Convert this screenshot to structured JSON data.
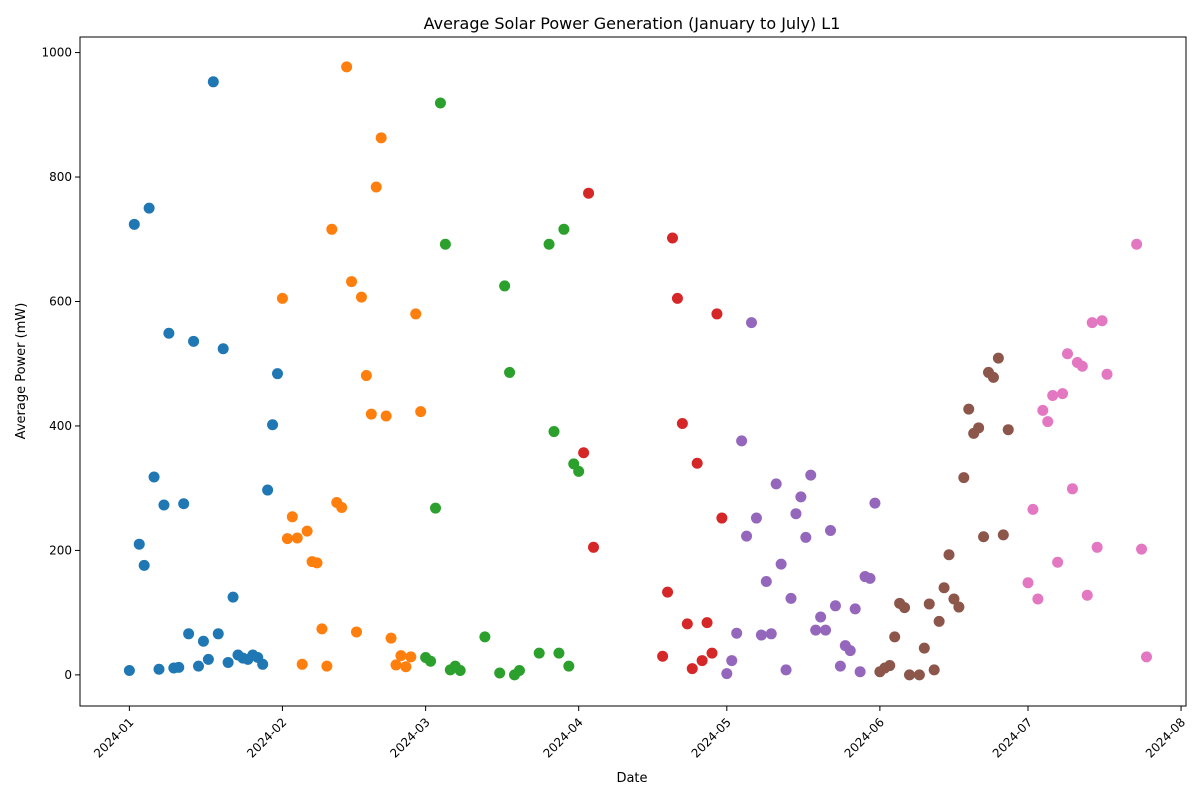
{
  "chart_data": {
    "type": "scatter",
    "title": "Average Solar Power Generation (January to July) L1",
    "xlabel": "Date",
    "ylabel": "Average Power (mW)",
    "x_axis_type": "date",
    "xlim": [
      "2023-12-22",
      "2024-08-02"
    ],
    "ylim": [
      -50,
      1025
    ],
    "x_ticks": [
      {
        "date": "2024-01-01",
        "label": "2024-01"
      },
      {
        "date": "2024-02-01",
        "label": "2024-02"
      },
      {
        "date": "2024-03-01",
        "label": "2024-03"
      },
      {
        "date": "2024-04-01",
        "label": "2024-04"
      },
      {
        "date": "2024-05-01",
        "label": "2024-05"
      },
      {
        "date": "2024-06-01",
        "label": "2024-06"
      },
      {
        "date": "2024-07-01",
        "label": "2024-07"
      },
      {
        "date": "2024-08-01",
        "label": "2024-08"
      }
    ],
    "y_ticks": [
      0,
      200,
      400,
      600,
      800,
      1000
    ],
    "grid": false,
    "legend": "none",
    "series": [
      {
        "color": "#1f77b4",
        "points": [
          [
            "2024-01-01",
            7
          ],
          [
            "2024-01-02",
            724
          ],
          [
            "2024-01-03",
            210
          ],
          [
            "2024-01-04",
            176
          ],
          [
            "2024-01-05",
            750
          ],
          [
            "2024-01-06",
            318
          ],
          [
            "2024-01-07",
            9
          ],
          [
            "2024-01-08",
            273
          ],
          [
            "2024-01-09",
            549
          ],
          [
            "2024-01-10",
            11
          ],
          [
            "2024-01-11",
            12
          ],
          [
            "2024-01-12",
            275
          ],
          [
            "2024-01-13",
            66
          ],
          [
            "2024-01-14",
            536
          ],
          [
            "2024-01-15",
            14
          ],
          [
            "2024-01-16",
            54
          ],
          [
            "2024-01-17",
            25
          ],
          [
            "2024-01-18",
            953
          ],
          [
            "2024-01-19",
            66
          ],
          [
            "2024-01-20",
            524
          ],
          [
            "2024-01-21",
            20
          ],
          [
            "2024-01-22",
            125
          ],
          [
            "2024-01-23",
            32
          ],
          [
            "2024-01-24",
            27
          ],
          [
            "2024-01-25",
            25
          ],
          [
            "2024-01-26",
            32
          ],
          [
            "2024-01-27",
            28
          ],
          [
            "2024-01-28",
            17
          ],
          [
            "2024-01-29",
            297
          ],
          [
            "2024-01-30",
            402
          ],
          [
            "2024-01-31",
            484
          ]
        ]
      },
      {
        "color": "#ff7f0e",
        "points": [
          [
            "2024-02-01",
            605
          ],
          [
            "2024-02-02",
            219
          ],
          [
            "2024-02-03",
            254
          ],
          [
            "2024-02-04",
            220
          ],
          [
            "2024-02-05",
            17
          ],
          [
            "2024-02-06",
            231
          ],
          [
            "2024-02-07",
            182
          ],
          [
            "2024-02-08",
            180
          ],
          [
            "2024-02-09",
            74
          ],
          [
            "2024-02-10",
            14
          ],
          [
            "2024-02-11",
            716
          ],
          [
            "2024-02-12",
            277
          ],
          [
            "2024-02-13",
            269
          ],
          [
            "2024-02-14",
            977
          ],
          [
            "2024-02-15",
            632
          ],
          [
            "2024-02-16",
            69
          ],
          [
            "2024-02-17",
            607
          ],
          [
            "2024-02-18",
            481
          ],
          [
            "2024-02-19",
            419
          ],
          [
            "2024-02-20",
            784
          ],
          [
            "2024-02-21",
            863
          ],
          [
            "2024-02-22",
            416
          ],
          [
            "2024-02-23",
            59
          ],
          [
            "2024-02-24",
            16
          ],
          [
            "2024-02-25",
            31
          ],
          [
            "2024-02-26",
            13
          ],
          [
            "2024-02-27",
            29
          ],
          [
            "2024-02-28",
            580
          ],
          [
            "2024-02-29",
            423
          ]
        ]
      },
      {
        "color": "#2ca02c",
        "points": [
          [
            "2024-03-01",
            28
          ],
          [
            "2024-03-02",
            22
          ],
          [
            "2024-03-03",
            268
          ],
          [
            "2024-03-04",
            919
          ],
          [
            "2024-03-05",
            692
          ],
          [
            "2024-03-06",
            8
          ],
          [
            "2024-03-07",
            14
          ],
          [
            "2024-03-08",
            7
          ],
          [
            "2024-03-13",
            61
          ],
          [
            "2024-03-16",
            3
          ],
          [
            "2024-03-17",
            625
          ],
          [
            "2024-03-18",
            486
          ],
          [
            "2024-03-19",
            0
          ],
          [
            "2024-03-20",
            7
          ],
          [
            "2024-03-24",
            35
          ],
          [
            "2024-03-26",
            692
          ],
          [
            "2024-03-27",
            391
          ],
          [
            "2024-03-28",
            35
          ],
          [
            "2024-03-29",
            716
          ],
          [
            "2024-03-30",
            14
          ],
          [
            "2024-03-31",
            339
          ],
          [
            "2024-04-01",
            327
          ]
        ]
      },
      {
        "color": "#d62728",
        "points": [
          [
            "2024-04-02",
            357
          ],
          [
            "2024-04-03",
            774
          ],
          [
            "2024-04-04",
            205
          ],
          [
            "2024-04-18",
            30
          ],
          [
            "2024-04-19",
            133
          ],
          [
            "2024-04-20",
            702
          ],
          [
            "2024-04-21",
            605
          ],
          [
            "2024-04-22",
            404
          ],
          [
            "2024-04-23",
            82
          ],
          [
            "2024-04-24",
            10
          ],
          [
            "2024-04-25",
            340
          ],
          [
            "2024-04-26",
            23
          ],
          [
            "2024-04-27",
            84
          ],
          [
            "2024-04-28",
            35
          ],
          [
            "2024-04-29",
            580
          ],
          [
            "2024-04-30",
            252
          ]
        ]
      },
      {
        "color": "#9467bd",
        "points": [
          [
            "2024-05-01",
            2
          ],
          [
            "2024-05-02",
            23
          ],
          [
            "2024-05-03",
            67
          ],
          [
            "2024-05-04",
            376
          ],
          [
            "2024-05-05",
            223
          ],
          [
            "2024-05-06",
            566
          ],
          [
            "2024-05-07",
            252
          ],
          [
            "2024-05-08",
            64
          ],
          [
            "2024-05-09",
            150
          ],
          [
            "2024-05-10",
            66
          ],
          [
            "2024-05-11",
            307
          ],
          [
            "2024-05-12",
            178
          ],
          [
            "2024-05-13",
            8
          ],
          [
            "2024-05-14",
            123
          ],
          [
            "2024-05-15",
            259
          ],
          [
            "2024-05-16",
            286
          ],
          [
            "2024-05-17",
            221
          ],
          [
            "2024-05-18",
            321
          ],
          [
            "2024-05-19",
            72
          ],
          [
            "2024-05-20",
            93
          ],
          [
            "2024-05-21",
            72
          ],
          [
            "2024-05-22",
            232
          ],
          [
            "2024-05-23",
            111
          ],
          [
            "2024-05-24",
            14
          ],
          [
            "2024-05-25",
            47
          ],
          [
            "2024-05-26",
            39
          ],
          [
            "2024-05-27",
            106
          ],
          [
            "2024-05-28",
            5
          ],
          [
            "2024-05-29",
            158
          ],
          [
            "2024-05-30",
            155
          ],
          [
            "2024-05-31",
            276
          ]
        ]
      },
      {
        "color": "#8c564b",
        "points": [
          [
            "2024-06-01",
            5
          ],
          [
            "2024-06-02",
            11
          ],
          [
            "2024-06-03",
            15
          ],
          [
            "2024-06-04",
            61
          ],
          [
            "2024-06-05",
            115
          ],
          [
            "2024-06-06",
            108
          ],
          [
            "2024-06-07",
            0
          ],
          [
            "2024-06-09",
            0
          ],
          [
            "2024-06-10",
            43
          ],
          [
            "2024-06-11",
            114
          ],
          [
            "2024-06-12",
            8
          ],
          [
            "2024-06-13",
            86
          ],
          [
            "2024-06-14",
            140
          ],
          [
            "2024-06-15",
            193
          ],
          [
            "2024-06-16",
            122
          ],
          [
            "2024-06-17",
            109
          ],
          [
            "2024-06-18",
            317
          ],
          [
            "2024-06-19",
            427
          ],
          [
            "2024-06-20",
            388
          ],
          [
            "2024-06-21",
            397
          ],
          [
            "2024-06-22",
            222
          ],
          [
            "2024-06-23",
            486
          ],
          [
            "2024-06-24",
            478
          ],
          [
            "2024-06-25",
            509
          ],
          [
            "2024-06-26",
            225
          ],
          [
            "2024-06-27",
            394
          ]
        ]
      },
      {
        "color": "#e377c2",
        "points": [
          [
            "2024-07-01",
            148
          ],
          [
            "2024-07-02",
            266
          ],
          [
            "2024-07-03",
            122
          ],
          [
            "2024-07-04",
            425
          ],
          [
            "2024-07-05",
            407
          ],
          [
            "2024-07-06",
            449
          ],
          [
            "2024-07-07",
            181
          ],
          [
            "2024-07-08",
            452
          ],
          [
            "2024-07-09",
            516
          ],
          [
            "2024-07-10",
            299
          ],
          [
            "2024-07-11",
            502
          ],
          [
            "2024-07-12",
            496
          ],
          [
            "2024-07-13",
            128
          ],
          [
            "2024-07-14",
            566
          ],
          [
            "2024-07-15",
            205
          ],
          [
            "2024-07-16",
            569
          ],
          [
            "2024-07-17",
            483
          ],
          [
            "2024-07-23",
            692
          ],
          [
            "2024-07-24",
            202
          ],
          [
            "2024-07-25",
            29
          ]
        ]
      }
    ]
  }
}
